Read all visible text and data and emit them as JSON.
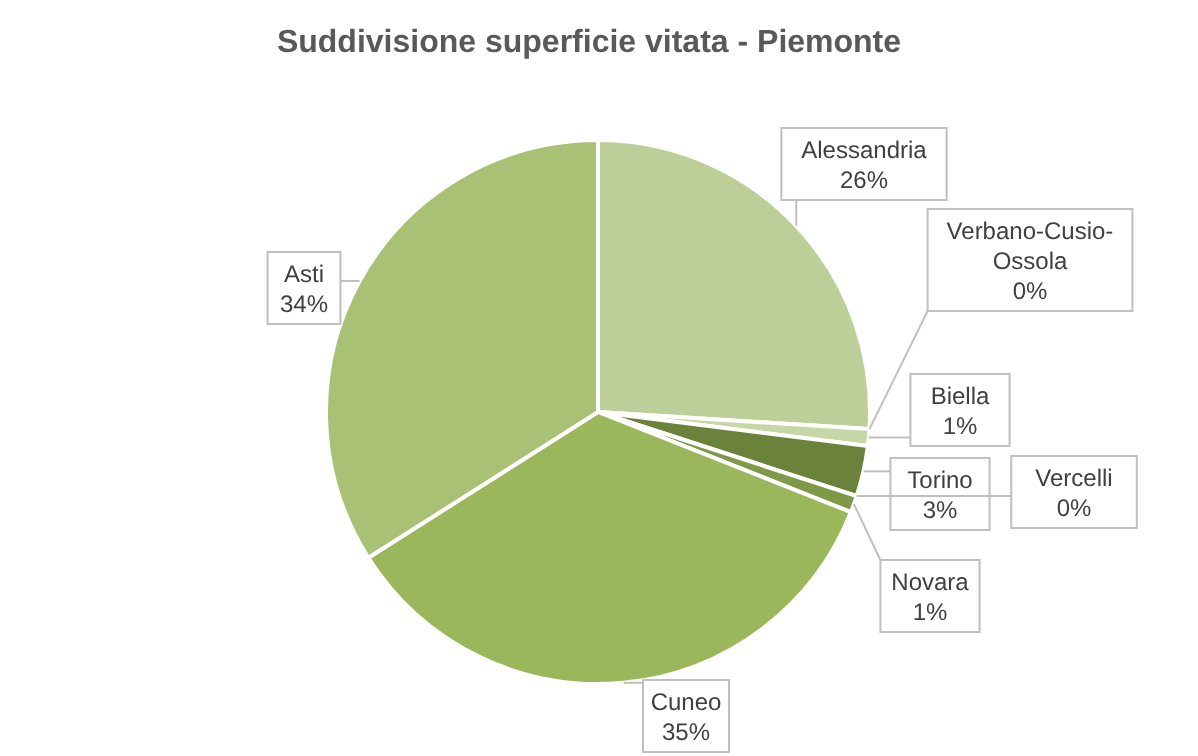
{
  "chart_data": {
    "type": "pie",
    "title": "Suddivisione superficie vitata - Piemonte",
    "categories": [
      "Alessandria",
      "Verbano-Cusio-Ossola",
      "Biella",
      "Torino",
      "Vercelli",
      "Novara",
      "Cuneo",
      "Asti"
    ],
    "values": [
      26,
      0,
      1,
      3,
      0,
      1,
      35,
      34
    ],
    "colors": [
      "#bccf98",
      "#dbe6c6",
      "#c6d7a6",
      "#6a823a",
      "#8ba653",
      "#7e9a49",
      "#9bb75c",
      "#a8c174"
    ],
    "value_labels": [
      "26%",
      "0%",
      "1%",
      "3%",
      "0%",
      "1%",
      "35%",
      "34%"
    ]
  }
}
